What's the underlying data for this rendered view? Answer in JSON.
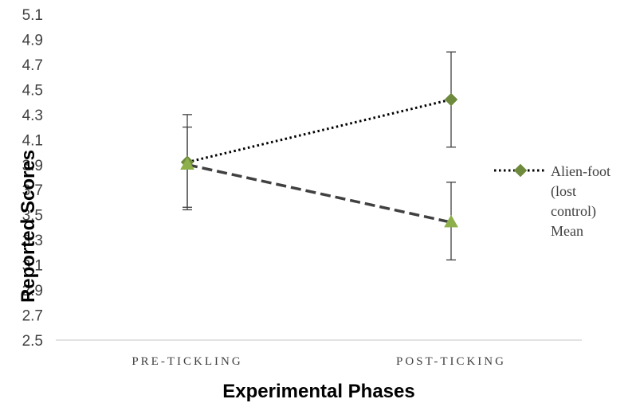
{
  "chart_data": {
    "type": "line",
    "categories": [
      "PRE-TICKLING",
      "POST-TICKING"
    ],
    "xlabel": "Experimental Phases",
    "ylabel": "Reported Scores",
    "ylim": [
      2.5,
      5.1
    ],
    "y_ticks": [
      "2.5",
      "2.7",
      "2.9",
      "3.1",
      "3.3",
      "3.5",
      "3.7",
      "3.9",
      "4.1",
      "4.3",
      "4.5",
      "4.7",
      "4.9",
      "5.1"
    ],
    "grid": false,
    "legend_position": "right",
    "series": [
      {
        "name": "Alien-foot (lost control) Mean",
        "legend_lines": [
          "Alien-foot",
          "(lost",
          "control)",
          "Mean"
        ],
        "values": [
          3.92,
          4.42
        ],
        "error_upper": [
          4.2,
          4.8
        ],
        "error_lower": [
          3.56,
          4.04
        ],
        "marker": "diamond",
        "line_style": "dotted",
        "line_color": "#000000",
        "marker_color": "#6E8B3D"
      },
      {
        "values": [
          3.9,
          3.44
        ],
        "error_upper": [
          4.3,
          3.76
        ],
        "error_lower": [
          3.54,
          3.14
        ],
        "marker": "triangle",
        "line_style": "dashed",
        "line_color": "#404040",
        "marker_color": "#8DB04A"
      }
    ]
  }
}
